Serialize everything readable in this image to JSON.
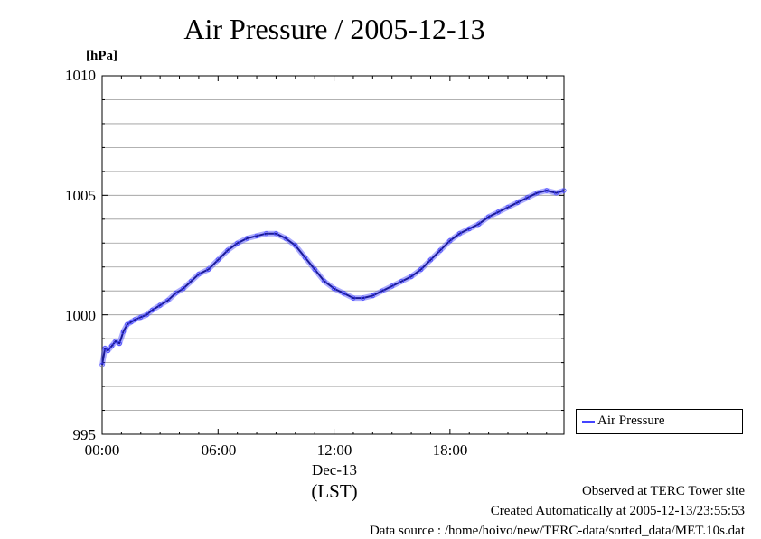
{
  "chart_data": {
    "type": "line",
    "title": "Air Pressure / 2005-12-13",
    "ylabel": "[hPa]",
    "ylim": [
      995,
      1010
    ],
    "yticks": [
      "995",
      "1000",
      "1005",
      "1010"
    ],
    "xlim_hours": [
      0,
      23.9
    ],
    "xticks": [
      "00:00",
      "06:00",
      "12:00",
      "18:00"
    ],
    "xticks_hours": [
      0,
      6,
      12,
      18
    ],
    "xdate_label": "Dec-13",
    "xunit_label": "(LST)",
    "grid": true,
    "legend_position": "right",
    "series": [
      {
        "name": "Air Pressure",
        "color": "#4444ff",
        "x_hours": [
          0,
          0.15,
          0.3,
          0.5,
          0.7,
          0.9,
          1.1,
          1.3,
          1.5,
          1.7,
          2.0,
          2.3,
          2.6,
          3.0,
          3.4,
          3.8,
          4.2,
          4.6,
          5.0,
          5.5,
          6.0,
          6.5,
          7.0,
          7.5,
          8.0,
          8.5,
          9.0,
          9.5,
          10.0,
          10.5,
          11.0,
          11.5,
          12.0,
          12.5,
          13.0,
          13.5,
          14.0,
          14.5,
          15.0,
          15.5,
          16.0,
          16.5,
          17.0,
          17.5,
          18.0,
          18.5,
          19.0,
          19.5,
          20.0,
          20.5,
          21.0,
          21.5,
          22.0,
          22.5,
          23.0,
          23.5,
          23.9
        ],
        "values": [
          997.9,
          998.6,
          998.5,
          998.7,
          998.9,
          998.8,
          999.3,
          999.6,
          999.7,
          999.8,
          999.9,
          1000.0,
          1000.2,
          1000.4,
          1000.6,
          1000.9,
          1001.1,
          1001.4,
          1001.7,
          1001.9,
          1002.3,
          1002.7,
          1003.0,
          1003.2,
          1003.3,
          1003.4,
          1003.4,
          1003.2,
          1002.9,
          1002.4,
          1001.9,
          1001.4,
          1001.1,
          1000.9,
          1000.7,
          1000.7,
          1000.8,
          1001.0,
          1001.2,
          1001.4,
          1001.6,
          1001.9,
          1002.3,
          1002.7,
          1003.1,
          1003.4,
          1003.6,
          1003.8,
          1004.1,
          1004.3,
          1004.5,
          1004.7,
          1004.9,
          1005.1,
          1005.2,
          1005.1,
          1005.2
        ]
      }
    ]
  },
  "footer": {
    "line1": "Observed at TERC Tower site",
    "line2": "Created Automatically at 2005-12-13/23:55:53",
    "line3": "Data source : /home/hoivo/new/TERC-data/sorted_data/MET.10s.dat"
  }
}
